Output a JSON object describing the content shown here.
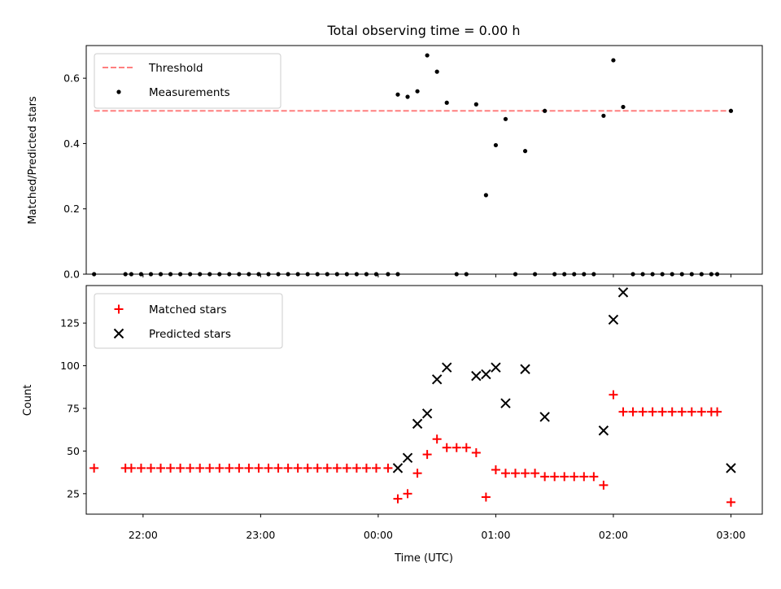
{
  "chart_data": {
    "title": "Total observing time = 0.00 h",
    "xlabel": "Time (UTC)",
    "xticks": [
      "22:00",
      "23:00",
      "00:00",
      "01:00",
      "02:00",
      "03:00"
    ],
    "xlim": [
      "21:31",
      "03:16"
    ],
    "charts": [
      {
        "type": "scatter",
        "ylabel": "Matched/Predicted stars",
        "ylim": [
          0,
          0.7
        ],
        "yticks": [
          "0.0",
          "0.2",
          "0.4",
          "0.6"
        ],
        "legend": "top-left",
        "threshold": {
          "name": "Threshold",
          "y": 0.5,
          "x_range": [
            "21:35",
            "03:00"
          ],
          "color": "#ff7f7f"
        },
        "measurements": {
          "name": "Measurements",
          "color": "#000000",
          "points": [
            [
              "21:35",
              0
            ],
            [
              "21:51",
              0
            ],
            [
              "21:54",
              0
            ],
            [
              "21:59",
              0
            ],
            [
              "22:04",
              0
            ],
            [
              "22:09",
              0
            ],
            [
              "22:14",
              0
            ],
            [
              "22:19",
              0
            ],
            [
              "22:24",
              0
            ],
            [
              "22:29",
              0
            ],
            [
              "22:34",
              0
            ],
            [
              "22:39",
              0
            ],
            [
              "22:44",
              0
            ],
            [
              "22:49",
              0
            ],
            [
              "22:54",
              0
            ],
            [
              "22:59",
              0
            ],
            [
              "23:04",
              0
            ],
            [
              "23:09",
              0
            ],
            [
              "23:14",
              0
            ],
            [
              "23:19",
              0
            ],
            [
              "23:24",
              0
            ],
            [
              "23:29",
              0
            ],
            [
              "23:34",
              0
            ],
            [
              "23:39",
              0
            ],
            [
              "23:44",
              0
            ],
            [
              "23:49",
              0
            ],
            [
              "23:54",
              0
            ],
            [
              "23:59",
              0
            ],
            [
              "00:05",
              0
            ],
            [
              "00:10",
              0
            ],
            [
              "00:10",
              0.55
            ],
            [
              "00:15",
              0.543
            ],
            [
              "00:20",
              0.56
            ],
            [
              "00:25",
              0.67
            ],
            [
              "00:30",
              0.62
            ],
            [
              "00:35",
              0.525
            ],
            [
              "00:40",
              0
            ],
            [
              "00:45",
              0
            ],
            [
              "00:50",
              0.52
            ],
            [
              "00:55",
              0.242
            ],
            [
              "01:00",
              0.395
            ],
            [
              "01:05",
              0.475
            ],
            [
              "01:10",
              0
            ],
            [
              "01:15",
              0.377
            ],
            [
              "01:20",
              0
            ],
            [
              "01:25",
              0.5
            ],
            [
              "01:30",
              0
            ],
            [
              "01:35",
              0
            ],
            [
              "01:40",
              0
            ],
            [
              "01:45",
              0
            ],
            [
              "01:50",
              0
            ],
            [
              "01:55",
              0.485
            ],
            [
              "02:00",
              0.655
            ],
            [
              "02:05",
              0.512
            ],
            [
              "02:10",
              0
            ],
            [
              "02:15",
              0
            ],
            [
              "02:20",
              0
            ],
            [
              "02:25",
              0
            ],
            [
              "02:30",
              0
            ],
            [
              "02:35",
              0
            ],
            [
              "02:40",
              0
            ],
            [
              "02:45",
              0
            ],
            [
              "02:50",
              0
            ],
            [
              "02:53",
              0
            ],
            [
              "03:00",
              0.5
            ]
          ]
        }
      },
      {
        "type": "scatter",
        "ylabel": "Count",
        "ylim": [
          13,
          147
        ],
        "yticks": [
          "25",
          "50",
          "75",
          "100",
          "125"
        ],
        "legend": "top-left",
        "series": [
          {
            "name": "Matched stars",
            "marker": "+",
            "color": "#ff0000",
            "points": [
              [
                "21:35",
                40
              ],
              [
                "21:51",
                40
              ],
              [
                "21:54",
                40
              ],
              [
                "21:59",
                40
              ],
              [
                "22:04",
                40
              ],
              [
                "22:09",
                40
              ],
              [
                "22:14",
                40
              ],
              [
                "22:19",
                40
              ],
              [
                "22:24",
                40
              ],
              [
                "22:29",
                40
              ],
              [
                "22:34",
                40
              ],
              [
                "22:39",
                40
              ],
              [
                "22:44",
                40
              ],
              [
                "22:49",
                40
              ],
              [
                "22:54",
                40
              ],
              [
                "22:59",
                40
              ],
              [
                "23:04",
                40
              ],
              [
                "23:09",
                40
              ],
              [
                "23:14",
                40
              ],
              [
                "23:19",
                40
              ],
              [
                "23:24",
                40
              ],
              [
                "23:29",
                40
              ],
              [
                "23:34",
                40
              ],
              [
                "23:39",
                40
              ],
              [
                "23:44",
                40
              ],
              [
                "23:49",
                40
              ],
              [
                "23:54",
                40
              ],
              [
                "23:59",
                40
              ],
              [
                "00:05",
                40
              ],
              [
                "00:10",
                22
              ],
              [
                "00:15",
                25
              ],
              [
                "00:20",
                37
              ],
              [
                "00:25",
                48
              ],
              [
                "00:30",
                57
              ],
              [
                "00:35",
                52
              ],
              [
                "00:40",
                52
              ],
              [
                "00:45",
                52
              ],
              [
                "00:50",
                49
              ],
              [
                "00:55",
                23
              ],
              [
                "01:00",
                39
              ],
              [
                "01:05",
                37
              ],
              [
                "01:10",
                37
              ],
              [
                "01:15",
                37
              ],
              [
                "01:20",
                37
              ],
              [
                "01:25",
                35
              ],
              [
                "01:30",
                35
              ],
              [
                "01:35",
                35
              ],
              [
                "01:40",
                35
              ],
              [
                "01:45",
                35
              ],
              [
                "01:50",
                35
              ],
              [
                "01:55",
                30
              ],
              [
                "02:00",
                83
              ],
              [
                "02:05",
                73
              ],
              [
                "02:10",
                73
              ],
              [
                "02:15",
                73
              ],
              [
                "02:20",
                73
              ],
              [
                "02:25",
                73
              ],
              [
                "02:30",
                73
              ],
              [
                "02:35",
                73
              ],
              [
                "02:40",
                73
              ],
              [
                "02:45",
                73
              ],
              [
                "02:50",
                73
              ],
              [
                "02:53",
                73
              ],
              [
                "03:00",
                20
              ]
            ]
          },
          {
            "name": "Predicted stars",
            "marker": "x",
            "color": "#000000",
            "points": [
              [
                "00:10",
                40
              ],
              [
                "00:15",
                46
              ],
              [
                "00:20",
                66
              ],
              [
                "00:25",
                72
              ],
              [
                "00:30",
                92
              ],
              [
                "00:35",
                99
              ],
              [
                "00:50",
                94
              ],
              [
                "00:55",
                95
              ],
              [
                "01:00",
                99
              ],
              [
                "01:05",
                78
              ],
              [
                "01:15",
                98
              ],
              [
                "01:25",
                70
              ],
              [
                "01:55",
                62
              ],
              [
                "02:00",
                127
              ],
              [
                "02:05",
                143
              ],
              [
                "03:00",
                40
              ]
            ]
          }
        ]
      }
    ]
  }
}
